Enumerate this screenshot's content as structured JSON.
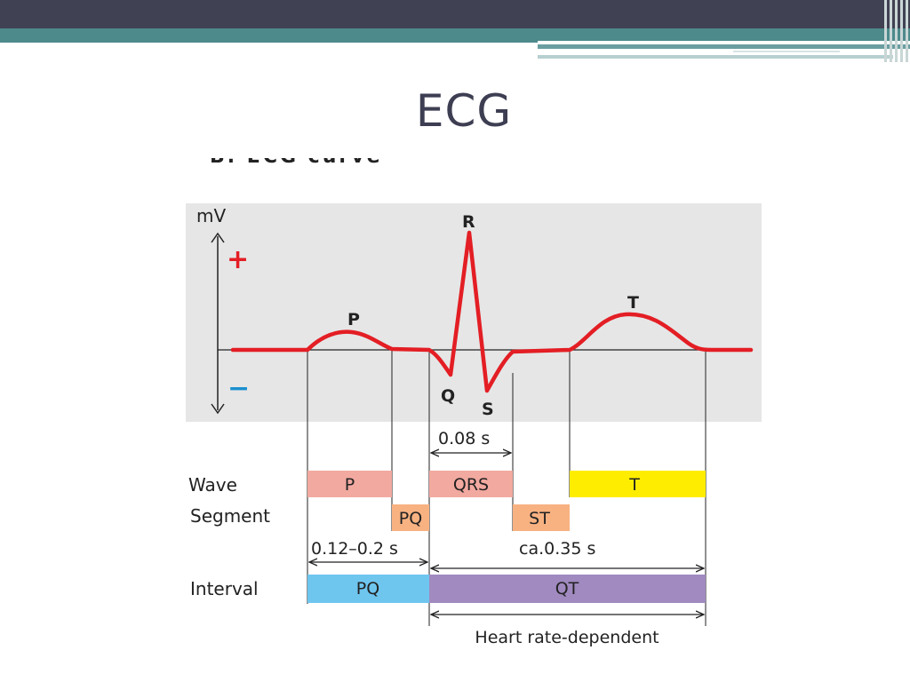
{
  "slide": {
    "title": "ECG",
    "cutoff_caption": "B. ECG curve"
  },
  "colors": {
    "header_dark": "#404153",
    "header_teal": "#4d8a8c",
    "plot_background": "#e6e6e6",
    "trace": "#e31e24",
    "plus_sign": "#e31e24",
    "minus_sign": "#1a8fce",
    "wave_p": "#f2a9a0",
    "wave_qrs": "#f2a9a0",
    "wave_t": "#ffed00",
    "segment_pq": "#f8b282",
    "segment_st": "#f8b282",
    "interval_pq": "#6ec6ef",
    "interval_qt": "#a08ac0"
  },
  "diagram": {
    "axis_unit": "mV",
    "plus": "+",
    "minus": "−",
    "peaks": {
      "p": "P",
      "q": "Q",
      "r": "R",
      "s": "S",
      "t": "T"
    },
    "row_labels": {
      "wave": "Wave",
      "segment": "Segment",
      "interval": "Interval"
    },
    "waves": {
      "p": "P",
      "qrs": "QRS",
      "t": "T"
    },
    "segments": {
      "pq": "PQ",
      "st": "ST"
    },
    "intervals": {
      "pq": "PQ",
      "qt": "QT"
    },
    "durations": {
      "qrs": "0.08 s",
      "pq": "0.12–0.2 s",
      "qt": "ca.0.35 s",
      "heart_rate_note": "Heart rate-dependent"
    }
  }
}
